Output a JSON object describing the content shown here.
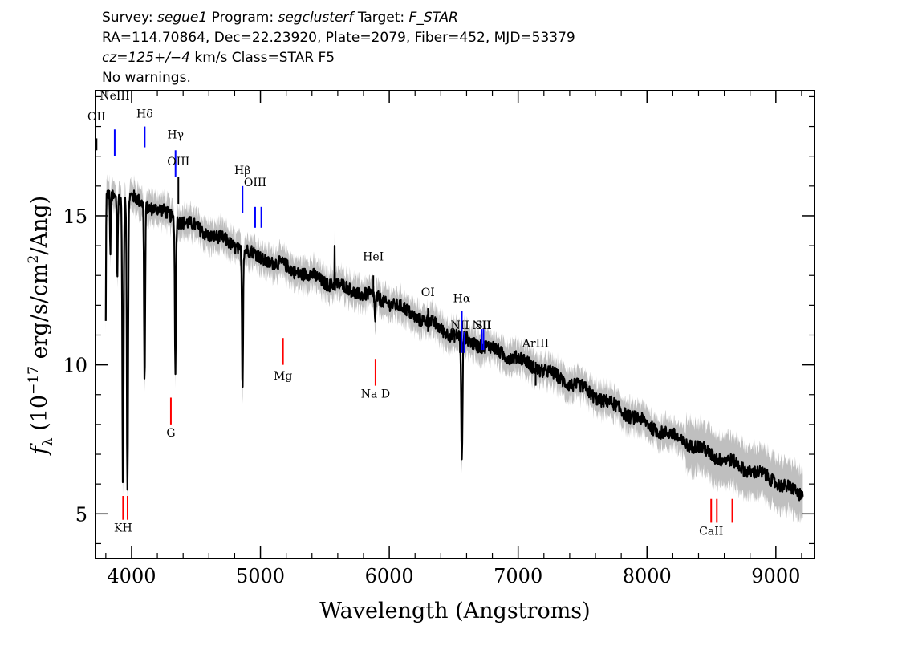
{
  "header": {
    "line1": {
      "survey_key": "Survey:",
      "survey": "segue1",
      "program_key": "Program:",
      "program": "segclusterf",
      "target_key": "Target:",
      "target": "F_STAR"
    },
    "line2": "RA=114.70864, Dec=22.23920, Plate=2079, Fiber=452, MJD=53379",
    "line3": {
      "cz": "cz=125+/−4",
      "rest": "km/s Class=STAR F5"
    },
    "line4": "No warnings."
  },
  "colors": {
    "flux": "#000000",
    "error": "#bfbfbf",
    "emission_lines": "#0000ff",
    "absorption_lines": "#ff0000",
    "frame": "#000000"
  },
  "chart_data": {
    "type": "line",
    "xlabel": "Wavelength (Angstroms)",
    "ylabel_parts": {
      "f": "f",
      "lambda": "λ",
      "open": " (10",
      "exp": "−17",
      "mid": " erg/s/cm",
      "sq": "2",
      "close": "/Ang)"
    },
    "xlim": [
      3720,
      9300
    ],
    "ylim": [
      3.5,
      19.2
    ],
    "x_ticks": [
      4000,
      5000,
      6000,
      7000,
      8000,
      9000
    ],
    "x_tick_labels": [
      "4000",
      "5000",
      "6000",
      "7000",
      "8000",
      "9000"
    ],
    "y_ticks": [
      5,
      10,
      15
    ],
    "y_tick_labels": [
      "5",
      "10",
      "15"
    ],
    "x_minor_step": 200,
    "y_minor_step": 1,
    "continuum": [
      [
        3800,
        15.7
      ],
      [
        4000,
        15.6
      ],
      [
        4200,
        15.2
      ],
      [
        4500,
        14.6
      ],
      [
        5000,
        13.6
      ],
      [
        5500,
        12.8
      ],
      [
        6000,
        12.1
      ],
      [
        6500,
        11.0
      ],
      [
        7000,
        10.2
      ],
      [
        7500,
        9.2
      ],
      [
        8000,
        8.0
      ],
      [
        8500,
        7.0
      ],
      [
        9000,
        6.1
      ],
      [
        9200,
        5.6
      ]
    ],
    "absorption_features": [
      {
        "center": 3798,
        "depth": 5.6,
        "width": 4
      },
      {
        "center": 3835,
        "depth": 2.0,
        "width": 4
      },
      {
        "center": 3889,
        "depth": 2.6,
        "width": 5
      },
      {
        "center": 3933,
        "depth": 9.8,
        "width": 7
      },
      {
        "center": 3968,
        "depth": 9.8,
        "width": 7
      },
      {
        "center": 4101,
        "depth": 6.0,
        "width": 6
      },
      {
        "center": 4340,
        "depth": 5.2,
        "width": 6
      },
      {
        "center": 4861,
        "depth": 4.6,
        "width": 6
      },
      {
        "center": 5890,
        "depth": 0.9,
        "width": 5
      },
      {
        "center": 6563,
        "depth": 4.3,
        "width": 7
      }
    ],
    "spikes": [
      {
        "x": 5577,
        "y": 14.0
      }
    ],
    "lines": [
      {
        "label": "OII",
        "x": 3728,
        "y_top": 17.6,
        "y_bottom": 17.2,
        "color": "#000000",
        "label_y": 18.2,
        "kind": "emission"
      },
      {
        "label": "NeIII",
        "x": 3869,
        "y_top": 17.9,
        "y_bottom": 17.0,
        "color": "#0000ff",
        "label_y": 18.9,
        "kind": "emission"
      },
      {
        "label": "Hδ",
        "x": 4102,
        "y_top": 18.0,
        "y_bottom": 17.3,
        "color": "#0000ff",
        "label_y": 18.3,
        "kind": "emission"
      },
      {
        "label": "Hγ",
        "x": 4341,
        "y_top": 17.2,
        "y_bottom": 16.3,
        "color": "#0000ff",
        "label_y": 17.6,
        "kind": "emission"
      },
      {
        "label": "OIII",
        "x": 4363,
        "y_top": 16.3,
        "y_bottom": 15.4,
        "color": "#000000",
        "label_y": 16.7,
        "kind": "emission"
      },
      {
        "label": "Hβ",
        "x": 4861,
        "y_top": 16.0,
        "y_bottom": 15.1,
        "color": "#0000ff",
        "label_y": 16.4,
        "kind": "emission"
      },
      {
        "label": "OIII",
        "x": 4959,
        "y_top": 15.3,
        "y_bottom": 14.6,
        "color": "#0000ff",
        "label_y": 16.0,
        "kind": "emission"
      },
      {
        "label": "",
        "x": 5007,
        "y_top": 15.3,
        "y_bottom": 14.6,
        "color": "#0000ff",
        "label_y": 16.0,
        "kind": "emission"
      },
      {
        "label": "HeI",
        "x": 5876,
        "y_top": 13.0,
        "y_bottom": 12.3,
        "color": "#000000",
        "label_y": 13.5,
        "kind": "emission"
      },
      {
        "label": "OI",
        "x": 6300,
        "y_top": 11.9,
        "y_bottom": 11.1,
        "color": "#000000",
        "label_y": 12.3,
        "kind": "emission"
      },
      {
        "label": "NII",
        "x": 6548,
        "y_top": 11.1,
        "y_bottom": 10.4,
        "color": "#000000",
        "label_y": 11.2,
        "kind": "emission"
      },
      {
        "label": "Hα",
        "x": 6563,
        "y_top": 11.8,
        "y_bottom": 10.4,
        "color": "#0000ff",
        "label_y": 12.1,
        "kind": "emission"
      },
      {
        "label": "",
        "x": 6583,
        "y_top": 11.1,
        "y_bottom": 10.4,
        "color": "#0000ff",
        "label_y": 11.2,
        "kind": "emission"
      },
      {
        "label": "NII",
        "x": 6716,
        "y_top": 11.2,
        "y_bottom": 10.5,
        "color": "#0000ff",
        "label_y": 11.2,
        "kind": "emission"
      },
      {
        "label": "SII",
        "x": 6731,
        "y_top": 11.2,
        "y_bottom": 10.5,
        "color": "#0000ff",
        "label_y": 11.2,
        "kind": "emission"
      },
      {
        "label": "ArIII",
        "x": 7136,
        "y_top": 10.1,
        "y_bottom": 9.3,
        "color": "#000000",
        "label_y": 10.6,
        "kind": "emission"
      },
      {
        "label": "Mg",
        "x": 5175,
        "y_top": 10.9,
        "y_bottom": 10.0,
        "color": "#ff0000",
        "label_y": 9.5,
        "kind": "absorption"
      },
      {
        "label": "G",
        "x": 4305,
        "y_top": 8.9,
        "y_bottom": 8.0,
        "color": "#ff0000",
        "label_y": 7.6,
        "kind": "absorption"
      },
      {
        "label": "Na D",
        "x": 5893,
        "y_top": 10.2,
        "y_bottom": 9.3,
        "color": "#ff0000",
        "label_y": 8.9,
        "kind": "absorption"
      },
      {
        "label": "KH",
        "x": 3934,
        "y_top": 5.6,
        "y_bottom": 4.8,
        "color": "#ff0000",
        "label_y": 4.4,
        "kind": "absorption"
      },
      {
        "label": "",
        "x": 3969,
        "y_top": 5.6,
        "y_bottom": 4.8,
        "color": "#ff0000",
        "label_y": 4.4,
        "kind": "absorption"
      },
      {
        "label": "CaII",
        "x": 8498,
        "y_top": 5.5,
        "y_bottom": 4.7,
        "color": "#ff0000",
        "label_y": 4.3,
        "kind": "absorption"
      },
      {
        "label": "",
        "x": 8542,
        "y_top": 5.5,
        "y_bottom": 4.7,
        "color": "#ff0000",
        "label_y": 4.3,
        "kind": "absorption"
      },
      {
        "label": "",
        "x": 8662,
        "y_top": 5.5,
        "y_bottom": 4.7,
        "color": "#ff0000",
        "label_y": 4.3,
        "kind": "absorption"
      }
    ]
  }
}
